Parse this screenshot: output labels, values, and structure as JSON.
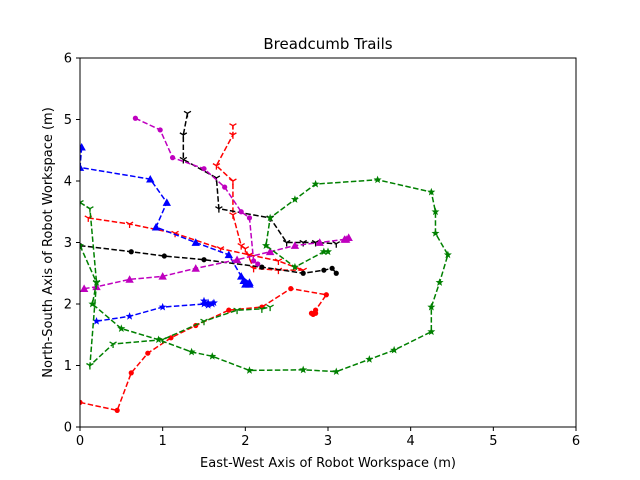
{
  "chart_data": {
    "type": "line",
    "title": "Breadcumb Trails",
    "xlabel": "East-West Axis of Robot Workspace (m)",
    "ylabel": "North-South Axis of Robot Workspace (m)",
    "xlim": [
      0,
      6
    ],
    "ylim": [
      0,
      6
    ],
    "xticks": [
      "0",
      "1",
      "2",
      "3",
      "4",
      "5",
      "6"
    ],
    "yticks": [
      "0",
      "1",
      "2",
      "3",
      "4",
      "5",
      "6"
    ],
    "grid": false,
    "legend": "none",
    "series": [
      {
        "color": "#ff0000",
        "marker": "circle",
        "points": [
          [
            0.0,
            0.4
          ],
          [
            0.45,
            0.27
          ],
          [
            0.62,
            0.88
          ],
          [
            0.82,
            1.2
          ],
          [
            1.1,
            1.45
          ],
          [
            1.4,
            1.65
          ],
          [
            1.8,
            1.9
          ],
          [
            2.2,
            1.95
          ],
          [
            2.55,
            2.25
          ],
          [
            2.98,
            2.15
          ],
          [
            2.85,
            1.9
          ],
          [
            2.8,
            1.85
          ],
          [
            2.85,
            1.85
          ],
          [
            2.82,
            1.83
          ]
        ]
      },
      {
        "color": "#ff0000",
        "marker": "tri_down",
        "points": [
          [
            0.1,
            3.4
          ],
          [
            0.6,
            3.3
          ],
          [
            1.15,
            3.15
          ],
          [
            1.7,
            2.9
          ],
          [
            2.05,
            2.8
          ],
          [
            2.4,
            2.7
          ],
          [
            2.7,
            2.55
          ],
          [
            2.4,
            2.55
          ],
          [
            2.1,
            2.58
          ],
          [
            2.0,
            2.9
          ],
          [
            1.95,
            2.95
          ],
          [
            1.85,
            3.45
          ],
          [
            1.85,
            4.0
          ],
          [
            1.65,
            4.25
          ],
          [
            1.85,
            4.75
          ],
          [
            1.85,
            4.9
          ]
        ]
      },
      {
        "color": "#0000ff",
        "marker": "triangle",
        "points": [
          [
            0.02,
            4.55
          ],
          [
            0.0,
            4.22
          ],
          [
            0.85,
            4.03
          ],
          [
            1.05,
            3.65
          ],
          [
            0.92,
            3.25
          ],
          [
            1.4,
            3.0
          ],
          [
            1.8,
            2.8
          ],
          [
            1.95,
            2.45
          ],
          [
            2.05,
            2.35
          ],
          [
            1.98,
            2.38
          ],
          [
            2.0,
            2.32
          ],
          [
            2.05,
            2.32
          ]
        ]
      },
      {
        "color": "#0000ff",
        "marker": "star",
        "points": [
          [
            0.2,
            1.72
          ],
          [
            0.6,
            1.8
          ],
          [
            1.0,
            1.95
          ],
          [
            1.5,
            2.0
          ],
          [
            1.55,
            2.02
          ],
          [
            1.6,
            2.0
          ],
          [
            1.5,
            2.05
          ],
          [
            1.55,
            1.98
          ],
          [
            1.62,
            2.02
          ]
        ]
      },
      {
        "color": "#000000",
        "marker": "circle",
        "points": [
          [
            0.0,
            2.95
          ],
          [
            0.62,
            2.85
          ],
          [
            1.02,
            2.78
          ],
          [
            1.5,
            2.72
          ],
          [
            2.2,
            2.6
          ],
          [
            2.7,
            2.5
          ],
          [
            2.95,
            2.55
          ],
          [
            3.05,
            2.58
          ],
          [
            3.1,
            2.5
          ]
        ]
      },
      {
        "color": "#000000",
        "marker": "tri_down",
        "points": [
          [
            1.3,
            5.1
          ],
          [
            1.25,
            4.75
          ],
          [
            1.25,
            4.35
          ],
          [
            1.65,
            4.05
          ],
          [
            1.68,
            3.55
          ],
          [
            2.3,
            3.4
          ],
          [
            2.5,
            3.0
          ],
          [
            2.7,
            3.0
          ],
          [
            2.85,
            3.0
          ],
          [
            3.1,
            2.98
          ]
        ]
      },
      {
        "color": "#bf00bf",
        "marker": "circle",
        "points": [
          [
            0.67,
            5.02
          ],
          [
            0.97,
            4.83
          ],
          [
            1.12,
            4.38
          ],
          [
            1.5,
            4.2
          ],
          [
            1.75,
            3.9
          ],
          [
            1.95,
            3.5
          ],
          [
            2.05,
            3.4
          ],
          [
            2.1,
            2.7
          ],
          [
            2.15,
            2.65
          ]
        ]
      },
      {
        "color": "#bf00bf",
        "marker": "triangle",
        "points": [
          [
            0.05,
            2.25
          ],
          [
            0.2,
            2.28
          ],
          [
            0.6,
            2.4
          ],
          [
            1.0,
            2.45
          ],
          [
            1.4,
            2.58
          ],
          [
            1.9,
            2.72
          ],
          [
            2.3,
            2.85
          ],
          [
            2.6,
            2.95
          ],
          [
            2.9,
            3.0
          ],
          [
            3.2,
            3.05
          ],
          [
            3.25,
            3.08
          ],
          [
            3.22,
            3.05
          ]
        ]
      },
      {
        "color": "#008000",
        "marker": "star",
        "points": [
          [
            0.0,
            2.95
          ],
          [
            0.2,
            2.35
          ],
          [
            0.15,
            2.0
          ],
          [
            0.5,
            1.6
          ],
          [
            0.95,
            1.42
          ],
          [
            1.35,
            1.22
          ],
          [
            1.6,
            1.15
          ],
          [
            2.05,
            0.92
          ],
          [
            2.7,
            0.93
          ],
          [
            3.1,
            0.9
          ],
          [
            3.5,
            1.1
          ],
          [
            3.8,
            1.25
          ],
          [
            4.25,
            1.55
          ],
          [
            4.25,
            1.95
          ],
          [
            4.35,
            2.35
          ],
          [
            4.45,
            2.8
          ],
          [
            4.3,
            3.15
          ],
          [
            4.3,
            3.5
          ],
          [
            4.25,
            3.82
          ],
          [
            3.6,
            4.02
          ],
          [
            2.85,
            3.95
          ],
          [
            2.6,
            3.7
          ],
          [
            2.3,
            3.4
          ],
          [
            2.25,
            2.95
          ],
          [
            2.6,
            2.6
          ],
          [
            2.95,
            2.85
          ],
          [
            3.0,
            2.85
          ]
        ]
      },
      {
        "color": "#008000",
        "marker": "tri_down",
        "points": [
          [
            0.0,
            3.65
          ],
          [
            0.12,
            3.55
          ],
          [
            0.2,
            2.35
          ],
          [
            0.12,
            1.0
          ],
          [
            0.4,
            1.35
          ],
          [
            1.0,
            1.42
          ],
          [
            1.5,
            1.72
          ],
          [
            1.9,
            1.9
          ],
          [
            2.2,
            1.92
          ],
          [
            2.3,
            1.95
          ]
        ]
      }
    ]
  }
}
